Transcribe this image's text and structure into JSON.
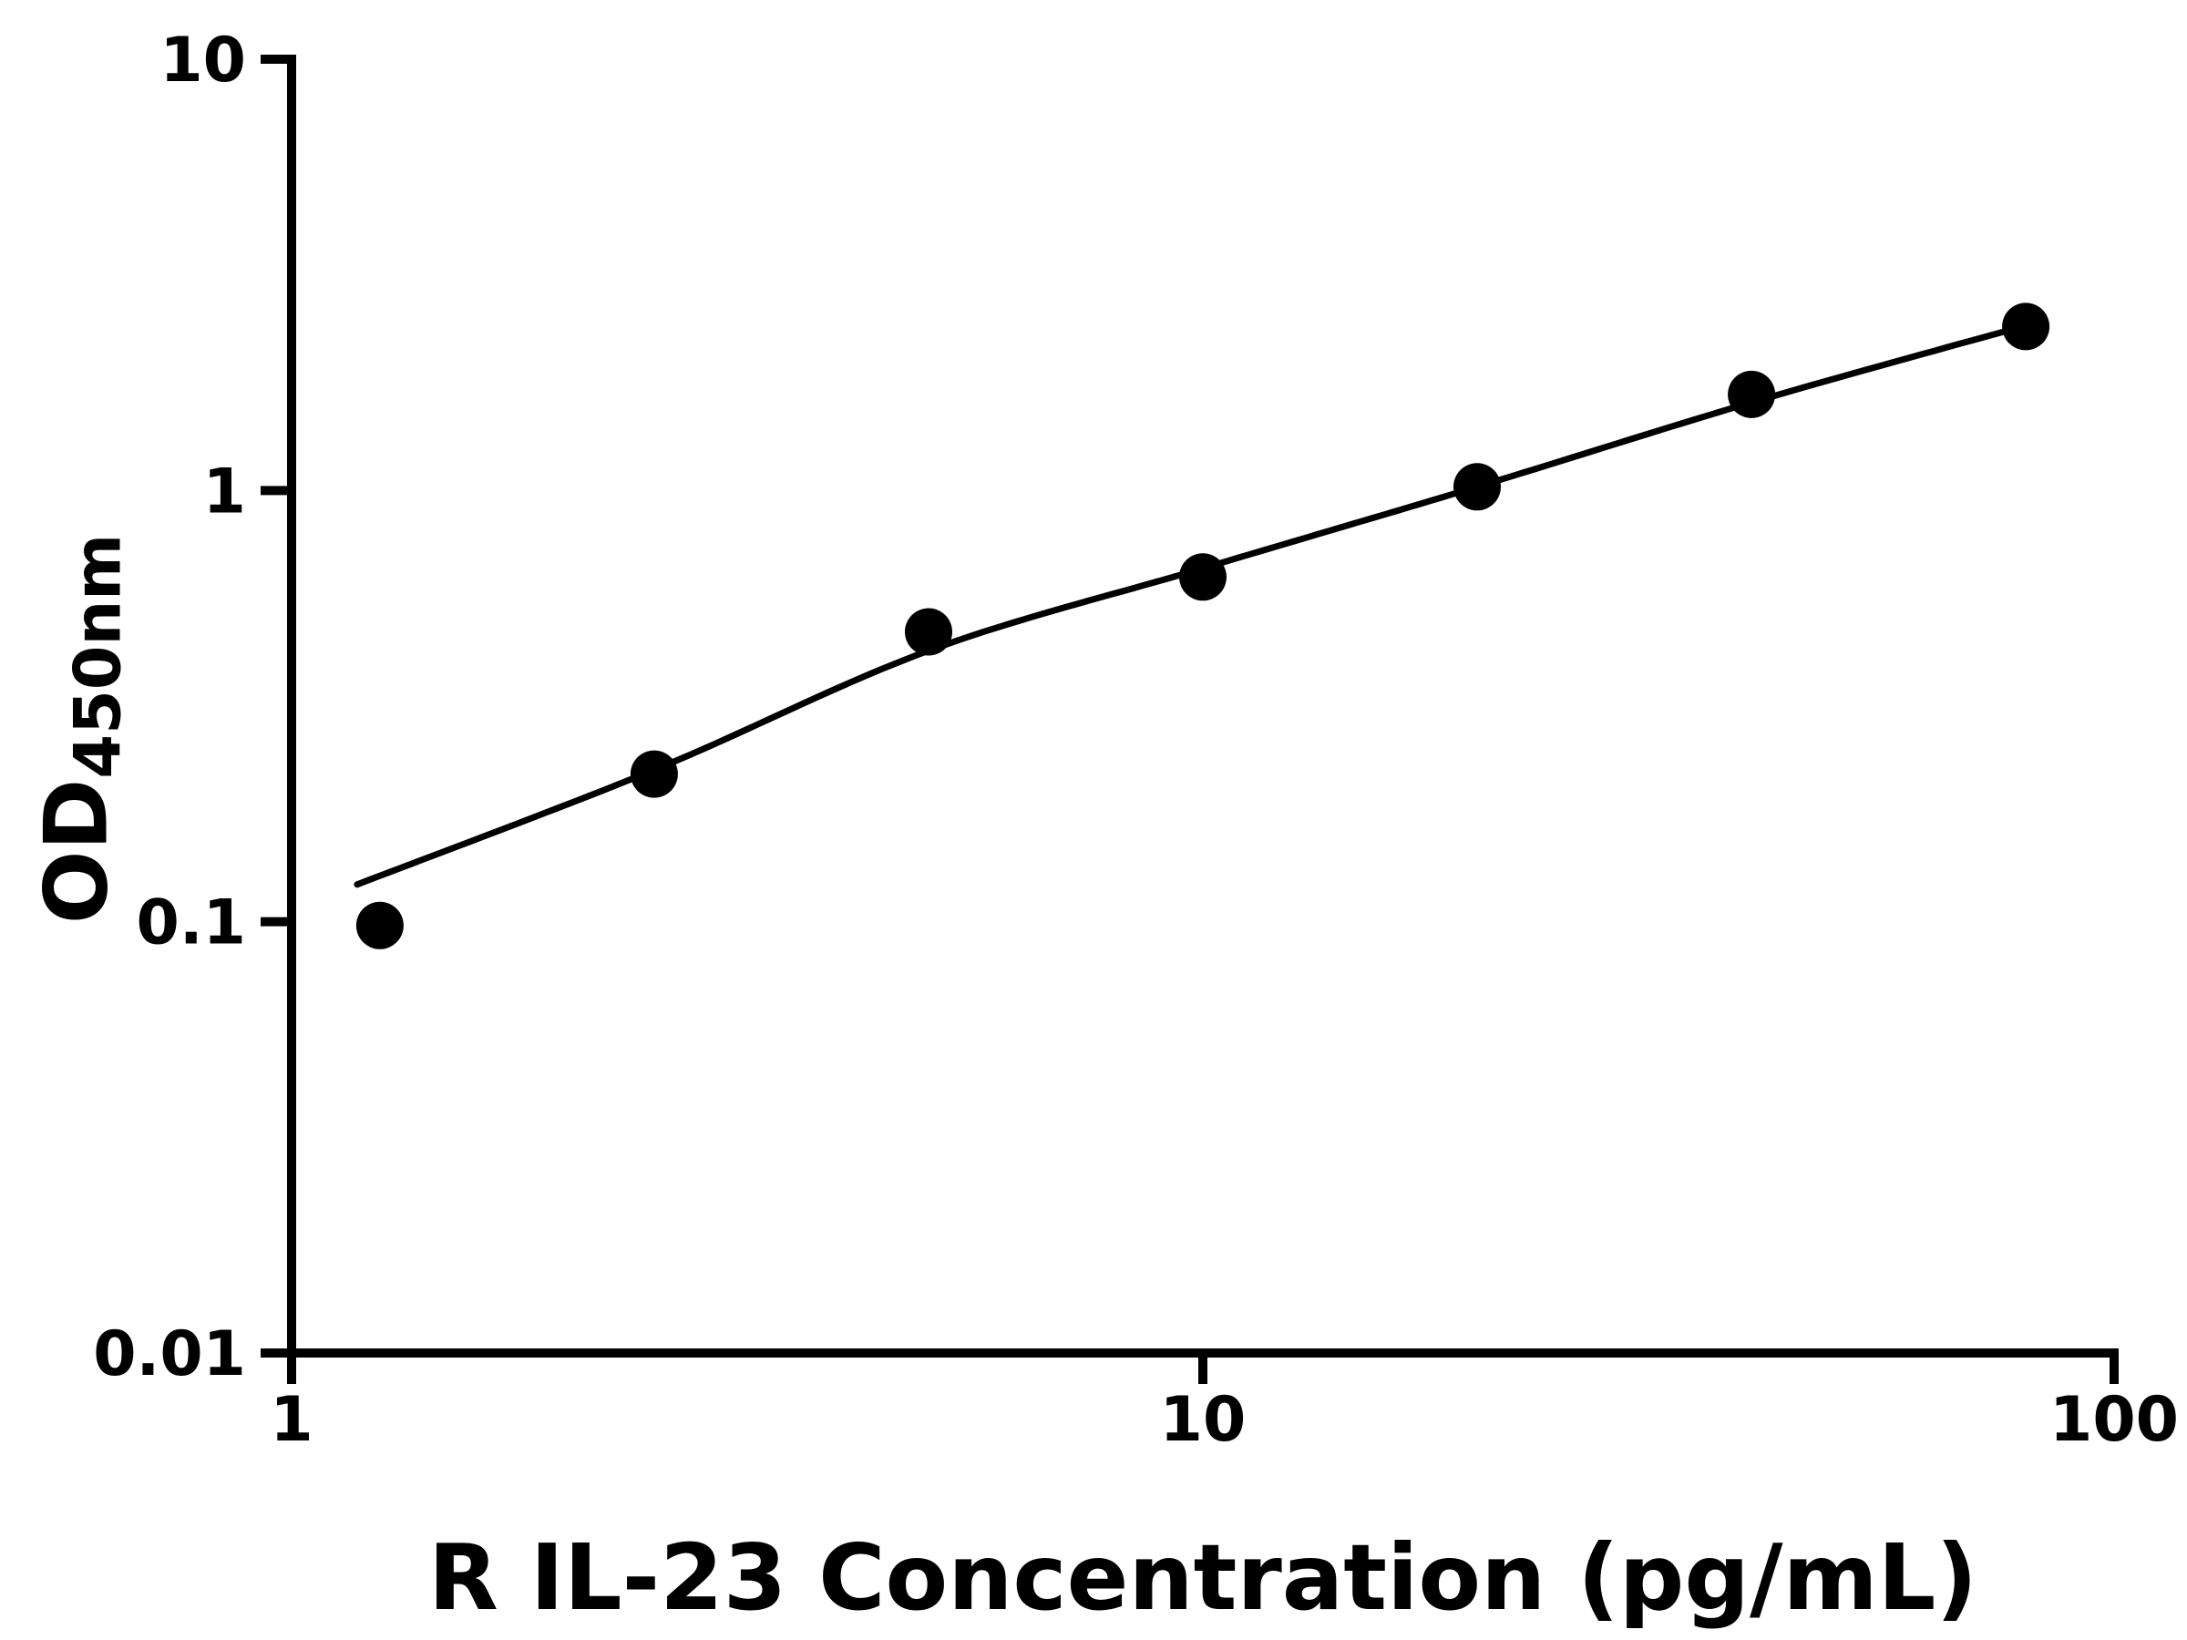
{
  "chart_data": {
    "type": "scatter",
    "title": "",
    "xlabel": "R IL-23 Concentration (pg/mL)",
    "ylabel_main": "OD",
    "ylabel_sub": "450nm",
    "x_scale": "log",
    "y_scale": "log",
    "xlim": [
      1,
      100
    ],
    "ylim": [
      0.01,
      10
    ],
    "grid": false,
    "legend": "none",
    "x_ticks": [
      {
        "value": 1,
        "label": "1"
      },
      {
        "value": 10,
        "label": "10"
      },
      {
        "value": 100,
        "label": "100"
      }
    ],
    "y_ticks": [
      {
        "value": 0.01,
        "label": "0.01"
      },
      {
        "value": 0.1,
        "label": "0.1"
      },
      {
        "value": 1,
        "label": "1"
      },
      {
        "value": 10,
        "label": "10"
      }
    ],
    "series": [
      {
        "name": "standard-data-points",
        "type": "scatter",
        "marker": "filled-circle",
        "color": "#000000",
        "x": [
          1.25,
          2.5,
          5,
          10,
          20,
          40,
          80
        ],
        "y": [
          0.098,
          0.22,
          0.47,
          0.63,
          1.02,
          1.67,
          2.4
        ]
      },
      {
        "name": "fit-curve",
        "type": "line",
        "color": "#000000",
        "x": [
          1.18,
          2.5,
          5,
          10,
          20,
          40,
          81
        ],
        "y": [
          0.122,
          0.225,
          0.425,
          0.66,
          1.02,
          1.6,
          2.43
        ]
      }
    ]
  },
  "colors": {
    "background": "#ffffff",
    "axis": "#000000",
    "marker": "#000000",
    "curve": "#000000"
  }
}
